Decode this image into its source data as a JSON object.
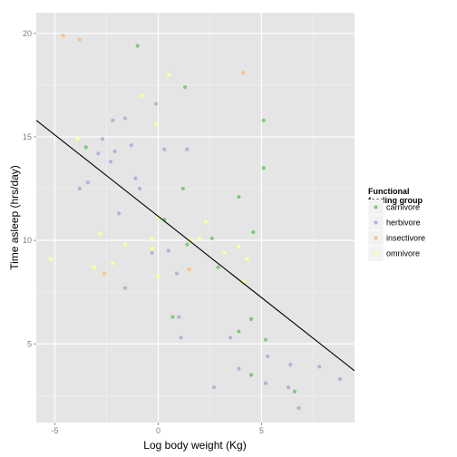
{
  "chart_data": {
    "type": "scatter",
    "xlabel": "Log body weight (Kg)",
    "ylabel": "Time asleep (hrs/day)",
    "xlim": [
      -5.9,
      9.5
    ],
    "ylim": [
      1.2,
      21.0
    ],
    "x_ticks": [
      -5,
      0,
      5
    ],
    "y_ticks": [
      5,
      10,
      15,
      20
    ],
    "grid": true,
    "legend_position": "right",
    "legend_title": [
      "Functional",
      " feeding group"
    ],
    "colors": {
      "carnivore": "#7fc97f",
      "herbivore": "#beaed4",
      "insectivore": "#fdc086",
      "omnivore": "#ffff99"
    },
    "legend": [
      {
        "key": "carnivore",
        "label": "carnivore"
      },
      {
        "key": "herbivore",
        "label": "herbivore"
      },
      {
        "key": "insectivore",
        "label": "insectivore"
      },
      {
        "key": "omnivore",
        "label": "omnivore"
      }
    ],
    "trend_line": {
      "x": [
        -5.9,
        9.5
      ],
      "y": [
        15.8,
        3.7
      ]
    },
    "series": [
      {
        "name": "carnivore",
        "points": [
          [
            -1.0,
            19.4
          ],
          [
            1.3,
            17.4
          ],
          [
            5.1,
            15.8
          ],
          [
            -3.5,
            14.5
          ],
          [
            5.1,
            13.5
          ],
          [
            1.2,
            12.5
          ],
          [
            3.9,
            12.1
          ],
          [
            0.3,
            11.0
          ],
          [
            4.6,
            10.4
          ],
          [
            2.6,
            10.1
          ],
          [
            1.4,
            9.8
          ],
          [
            2.9,
            8.7
          ],
          [
            0.7,
            6.3
          ],
          [
            4.5,
            6.2
          ],
          [
            3.9,
            5.6
          ],
          [
            5.2,
            5.2
          ],
          [
            4.5,
            3.5
          ],
          [
            6.6,
            2.7
          ]
        ]
      },
      {
        "name": "herbivore",
        "points": [
          [
            -0.1,
            16.6
          ],
          [
            -1.6,
            15.9
          ],
          [
            -2.2,
            15.8
          ],
          [
            -2.7,
            14.9
          ],
          [
            -1.3,
            14.6
          ],
          [
            0.3,
            14.4
          ],
          [
            1.4,
            14.4
          ],
          [
            -2.1,
            14.3
          ],
          [
            -2.9,
            14.2
          ],
          [
            -2.3,
            13.8
          ],
          [
            -1.1,
            13.0
          ],
          [
            -3.4,
            12.8
          ],
          [
            -3.8,
            12.5
          ],
          [
            -0.9,
            12.5
          ],
          [
            -1.9,
            11.3
          ],
          [
            0.5,
            9.5
          ],
          [
            -0.3,
            9.4
          ],
          [
            0.9,
            8.4
          ],
          [
            -1.6,
            7.7
          ],
          [
            1.0,
            6.3
          ],
          [
            3.5,
            5.3
          ],
          [
            1.1,
            5.3
          ],
          [
            5.3,
            4.4
          ],
          [
            3.9,
            3.8
          ],
          [
            6.4,
            4.0
          ],
          [
            7.8,
            3.9
          ],
          [
            8.8,
            3.3
          ],
          [
            5.2,
            3.1
          ],
          [
            6.3,
            2.9
          ],
          [
            2.7,
            2.9
          ],
          [
            6.8,
            1.9
          ]
        ]
      },
      {
        "name": "insectivore",
        "points": [
          [
            -4.6,
            19.9
          ],
          [
            -3.8,
            19.7
          ],
          [
            4.1,
            18.1
          ],
          [
            1.5,
            8.6
          ],
          [
            -2.6,
            8.4
          ]
        ]
      },
      {
        "name": "omnivore",
        "points": [
          [
            0.5,
            18.0
          ],
          [
            -0.8,
            17.0
          ],
          [
            -0.1,
            15.6
          ],
          [
            -3.9,
            14.9
          ],
          [
            2.3,
            10.9
          ],
          [
            0.0,
            11.1
          ],
          [
            -2.8,
            10.3
          ],
          [
            -0.3,
            10.1
          ],
          [
            2.0,
            10.1
          ],
          [
            1.6,
            10.0
          ],
          [
            3.9,
            9.7
          ],
          [
            -1.6,
            9.8
          ],
          [
            -0.3,
            9.6
          ],
          [
            4.3,
            9.1
          ],
          [
            -5.2,
            9.1
          ],
          [
            -2.2,
            8.9
          ],
          [
            3.2,
            9.4
          ],
          [
            -3.1,
            8.7
          ],
          [
            0.0,
            8.3
          ],
          [
            4.1,
            8.0
          ]
        ]
      }
    ]
  }
}
